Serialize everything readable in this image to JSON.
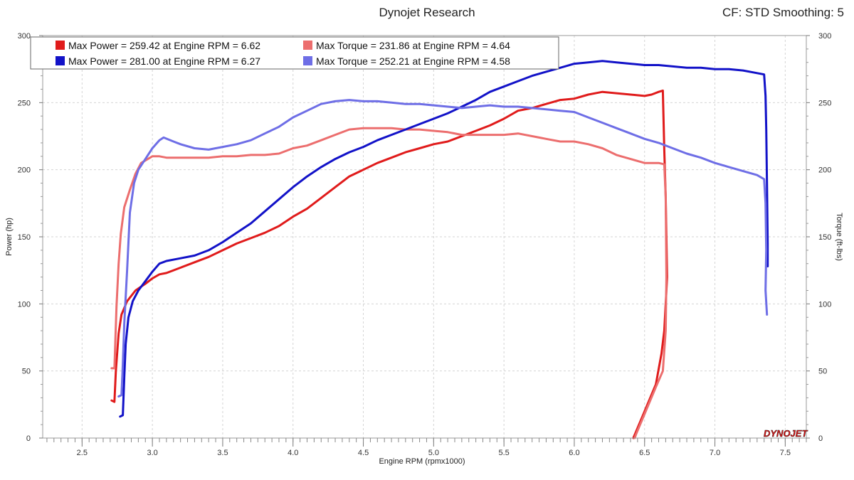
{
  "header": {
    "title": "Dynojet Research",
    "settings": "CF: STD Smoothing: 5"
  },
  "logo": "DYNOJET",
  "chart_data": {
    "type": "line",
    "xlabel": "Engine RPM (rpmx1000)",
    "ylabel_left": "Power (hp)",
    "ylabel_right": "Torque (ft-lbs)",
    "xlim": [
      2.22,
      7.65
    ],
    "ylim": [
      0,
      300
    ],
    "x_ticks": [
      2.5,
      3.0,
      3.5,
      4.0,
      4.5,
      5.0,
      5.5,
      6.0,
      6.5,
      7.0,
      7.5
    ],
    "x_tick_labels": [
      "2.5",
      "3.0",
      "3.5",
      "4.0",
      "4.5",
      "5.0",
      "5.5",
      "6.0",
      "6.5",
      "7.0",
      "7.5"
    ],
    "y_ticks": [
      0,
      50,
      100,
      150,
      200,
      250,
      300
    ],
    "y_tick_labels": [
      "0",
      "50",
      "100",
      "150",
      "200",
      "250",
      "300"
    ],
    "grid": true,
    "legend_position": "top-left",
    "legend": [
      {
        "label": "Max Power = 259.42 at Engine RPM = 6.62",
        "color": "#e01b1b"
      },
      {
        "label": "Max Torque = 231.86 at Engine RPM = 4.64",
        "color": "#ec6e6e"
      },
      {
        "label": "Max Power = 281.00 at Engine RPM = 6.27",
        "color": "#1212c8"
      },
      {
        "label": "Max Torque = 252.21 at Engine RPM = 4.58",
        "color": "#6e6ee6"
      }
    ],
    "series": [
      {
        "color": "#e01b1b",
        "width": 3,
        "points": [
          [
            2.71,
            28
          ],
          [
            2.73,
            27
          ],
          [
            2.74,
            50
          ],
          [
            2.76,
            78
          ],
          [
            2.78,
            92
          ],
          [
            2.82,
            102
          ],
          [
            2.88,
            110
          ],
          [
            2.95,
            115
          ],
          [
            3.0,
            119
          ],
          [
            3.05,
            122
          ],
          [
            3.1,
            123
          ],
          [
            3.2,
            127
          ],
          [
            3.3,
            131
          ],
          [
            3.4,
            135
          ],
          [
            3.5,
            140
          ],
          [
            3.6,
            145
          ],
          [
            3.7,
            149
          ],
          [
            3.8,
            153
          ],
          [
            3.9,
            158
          ],
          [
            4.0,
            165
          ],
          [
            4.1,
            171
          ],
          [
            4.2,
            179
          ],
          [
            4.3,
            187
          ],
          [
            4.4,
            195
          ],
          [
            4.5,
            200
          ],
          [
            4.6,
            205
          ],
          [
            4.7,
            209
          ],
          [
            4.8,
            213
          ],
          [
            4.9,
            216
          ],
          [
            5.0,
            219
          ],
          [
            5.1,
            221
          ],
          [
            5.2,
            225
          ],
          [
            5.3,
            229
          ],
          [
            5.4,
            233
          ],
          [
            5.5,
            238
          ],
          [
            5.6,
            244
          ],
          [
            5.7,
            246
          ],
          [
            5.8,
            249
          ],
          [
            5.9,
            252
          ],
          [
            6.0,
            253
          ],
          [
            6.1,
            256
          ],
          [
            6.2,
            258
          ],
          [
            6.3,
            257
          ],
          [
            6.4,
            256
          ],
          [
            6.5,
            255
          ],
          [
            6.55,
            256
          ],
          [
            6.6,
            258
          ],
          [
            6.63,
            259
          ],
          [
            6.64,
            215
          ],
          [
            6.65,
            180
          ],
          [
            6.655,
            150
          ],
          [
            6.66,
            120
          ],
          [
            6.64,
            80
          ],
          [
            6.62,
            63
          ],
          [
            6.58,
            40
          ],
          [
            6.5,
            20
          ],
          [
            6.44,
            5
          ],
          [
            6.42,
            0
          ]
        ]
      },
      {
        "color": "#ec6e6e",
        "width": 3,
        "points": [
          [
            2.71,
            52
          ],
          [
            2.73,
            52
          ],
          [
            2.745,
            98
          ],
          [
            2.76,
            130
          ],
          [
            2.775,
            152
          ],
          [
            2.8,
            172
          ],
          [
            2.84,
            185
          ],
          [
            2.88,
            197
          ],
          [
            2.92,
            205
          ],
          [
            3.0,
            210
          ],
          [
            3.05,
            210
          ],
          [
            3.1,
            209
          ],
          [
            3.2,
            209
          ],
          [
            3.3,
            209
          ],
          [
            3.4,
            209
          ],
          [
            3.5,
            210
          ],
          [
            3.6,
            210
          ],
          [
            3.7,
            211
          ],
          [
            3.8,
            211
          ],
          [
            3.9,
            212
          ],
          [
            4.0,
            216
          ],
          [
            4.1,
            218
          ],
          [
            4.2,
            222
          ],
          [
            4.3,
            226
          ],
          [
            4.4,
            230
          ],
          [
            4.5,
            231
          ],
          [
            4.6,
            231
          ],
          [
            4.7,
            231
          ],
          [
            4.8,
            230
          ],
          [
            4.9,
            230
          ],
          [
            5.0,
            229
          ],
          [
            5.1,
            228
          ],
          [
            5.2,
            226
          ],
          [
            5.3,
            226
          ],
          [
            5.4,
            226
          ],
          [
            5.5,
            226
          ],
          [
            5.6,
            227
          ],
          [
            5.7,
            225
          ],
          [
            5.8,
            223
          ],
          [
            5.9,
            221
          ],
          [
            6.0,
            221
          ],
          [
            6.1,
            219
          ],
          [
            6.2,
            216
          ],
          [
            6.3,
            211
          ],
          [
            6.4,
            208
          ],
          [
            6.5,
            205
          ],
          [
            6.6,
            205
          ],
          [
            6.64,
            204
          ],
          [
            6.65,
            180
          ],
          [
            6.655,
            120
          ],
          [
            6.65,
            80
          ],
          [
            6.63,
            50
          ],
          [
            6.58,
            38
          ],
          [
            6.5,
            18
          ],
          [
            6.44,
            3
          ],
          [
            6.43,
            0
          ]
        ]
      },
      {
        "color": "#1212c8",
        "width": 3,
        "points": [
          [
            2.77,
            16
          ],
          [
            2.79,
            17
          ],
          [
            2.8,
            45
          ],
          [
            2.81,
            70
          ],
          [
            2.83,
            90
          ],
          [
            2.86,
            102
          ],
          [
            2.9,
            110
          ],
          [
            2.95,
            117
          ],
          [
            3.0,
            124
          ],
          [
            3.05,
            130
          ],
          [
            3.1,
            132
          ],
          [
            3.2,
            134
          ],
          [
            3.3,
            136
          ],
          [
            3.4,
            140
          ],
          [
            3.5,
            146
          ],
          [
            3.6,
            153
          ],
          [
            3.7,
            160
          ],
          [
            3.8,
            169
          ],
          [
            3.9,
            178
          ],
          [
            4.0,
            187
          ],
          [
            4.1,
            195
          ],
          [
            4.2,
            202
          ],
          [
            4.3,
            208
          ],
          [
            4.4,
            213
          ],
          [
            4.5,
            217
          ],
          [
            4.6,
            222
          ],
          [
            4.7,
            226
          ],
          [
            4.8,
            230
          ],
          [
            4.9,
            234
          ],
          [
            5.0,
            238
          ],
          [
            5.1,
            242
          ],
          [
            5.2,
            247
          ],
          [
            5.3,
            252
          ],
          [
            5.4,
            258
          ],
          [
            5.5,
            262
          ],
          [
            5.6,
            266
          ],
          [
            5.7,
            270
          ],
          [
            5.8,
            273
          ],
          [
            5.9,
            276
          ],
          [
            6.0,
            279
          ],
          [
            6.1,
            280
          ],
          [
            6.2,
            281
          ],
          [
            6.3,
            280
          ],
          [
            6.4,
            279
          ],
          [
            6.5,
            278
          ],
          [
            6.6,
            278
          ],
          [
            6.7,
            277
          ],
          [
            6.8,
            276
          ],
          [
            6.9,
            276
          ],
          [
            7.0,
            275
          ],
          [
            7.1,
            275
          ],
          [
            7.2,
            274
          ],
          [
            7.3,
            272
          ],
          [
            7.35,
            271
          ],
          [
            7.36,
            255
          ],
          [
            7.365,
            230
          ],
          [
            7.37,
            190
          ],
          [
            7.375,
            145
          ],
          [
            7.375,
            128
          ]
        ]
      },
      {
        "color": "#6e6ee6",
        "width": 3,
        "points": [
          [
            2.76,
            31
          ],
          [
            2.78,
            32
          ],
          [
            2.79,
            55
          ],
          [
            2.8,
            85
          ],
          [
            2.82,
            125
          ],
          [
            2.84,
            168
          ],
          [
            2.87,
            190
          ],
          [
            2.9,
            200
          ],
          [
            2.95,
            208
          ],
          [
            3.0,
            216
          ],
          [
            3.05,
            222
          ],
          [
            3.08,
            224
          ],
          [
            3.15,
            221
          ],
          [
            3.2,
            219
          ],
          [
            3.3,
            216
          ],
          [
            3.4,
            215
          ],
          [
            3.5,
            217
          ],
          [
            3.6,
            219
          ],
          [
            3.7,
            222
          ],
          [
            3.8,
            227
          ],
          [
            3.9,
            232
          ],
          [
            4.0,
            239
          ],
          [
            4.1,
            244
          ],
          [
            4.2,
            249
          ],
          [
            4.3,
            251
          ],
          [
            4.4,
            252
          ],
          [
            4.5,
            251
          ],
          [
            4.6,
            251
          ],
          [
            4.7,
            250
          ],
          [
            4.8,
            249
          ],
          [
            4.9,
            249
          ],
          [
            5.0,
            248
          ],
          [
            5.1,
            247
          ],
          [
            5.2,
            246
          ],
          [
            5.3,
            247
          ],
          [
            5.4,
            248
          ],
          [
            5.5,
            247
          ],
          [
            5.6,
            247
          ],
          [
            5.7,
            246
          ],
          [
            5.8,
            245
          ],
          [
            5.9,
            244
          ],
          [
            6.0,
            243
          ],
          [
            6.1,
            239
          ],
          [
            6.2,
            235
          ],
          [
            6.3,
            231
          ],
          [
            6.4,
            227
          ],
          [
            6.5,
            223
          ],
          [
            6.6,
            220
          ],
          [
            6.7,
            216
          ],
          [
            6.8,
            212
          ],
          [
            6.9,
            209
          ],
          [
            7.0,
            205
          ],
          [
            7.1,
            202
          ],
          [
            7.2,
            199
          ],
          [
            7.3,
            196
          ],
          [
            7.35,
            193
          ],
          [
            7.36,
            175
          ],
          [
            7.365,
            140
          ],
          [
            7.36,
            110
          ],
          [
            7.37,
            92
          ]
        ]
      }
    ]
  }
}
